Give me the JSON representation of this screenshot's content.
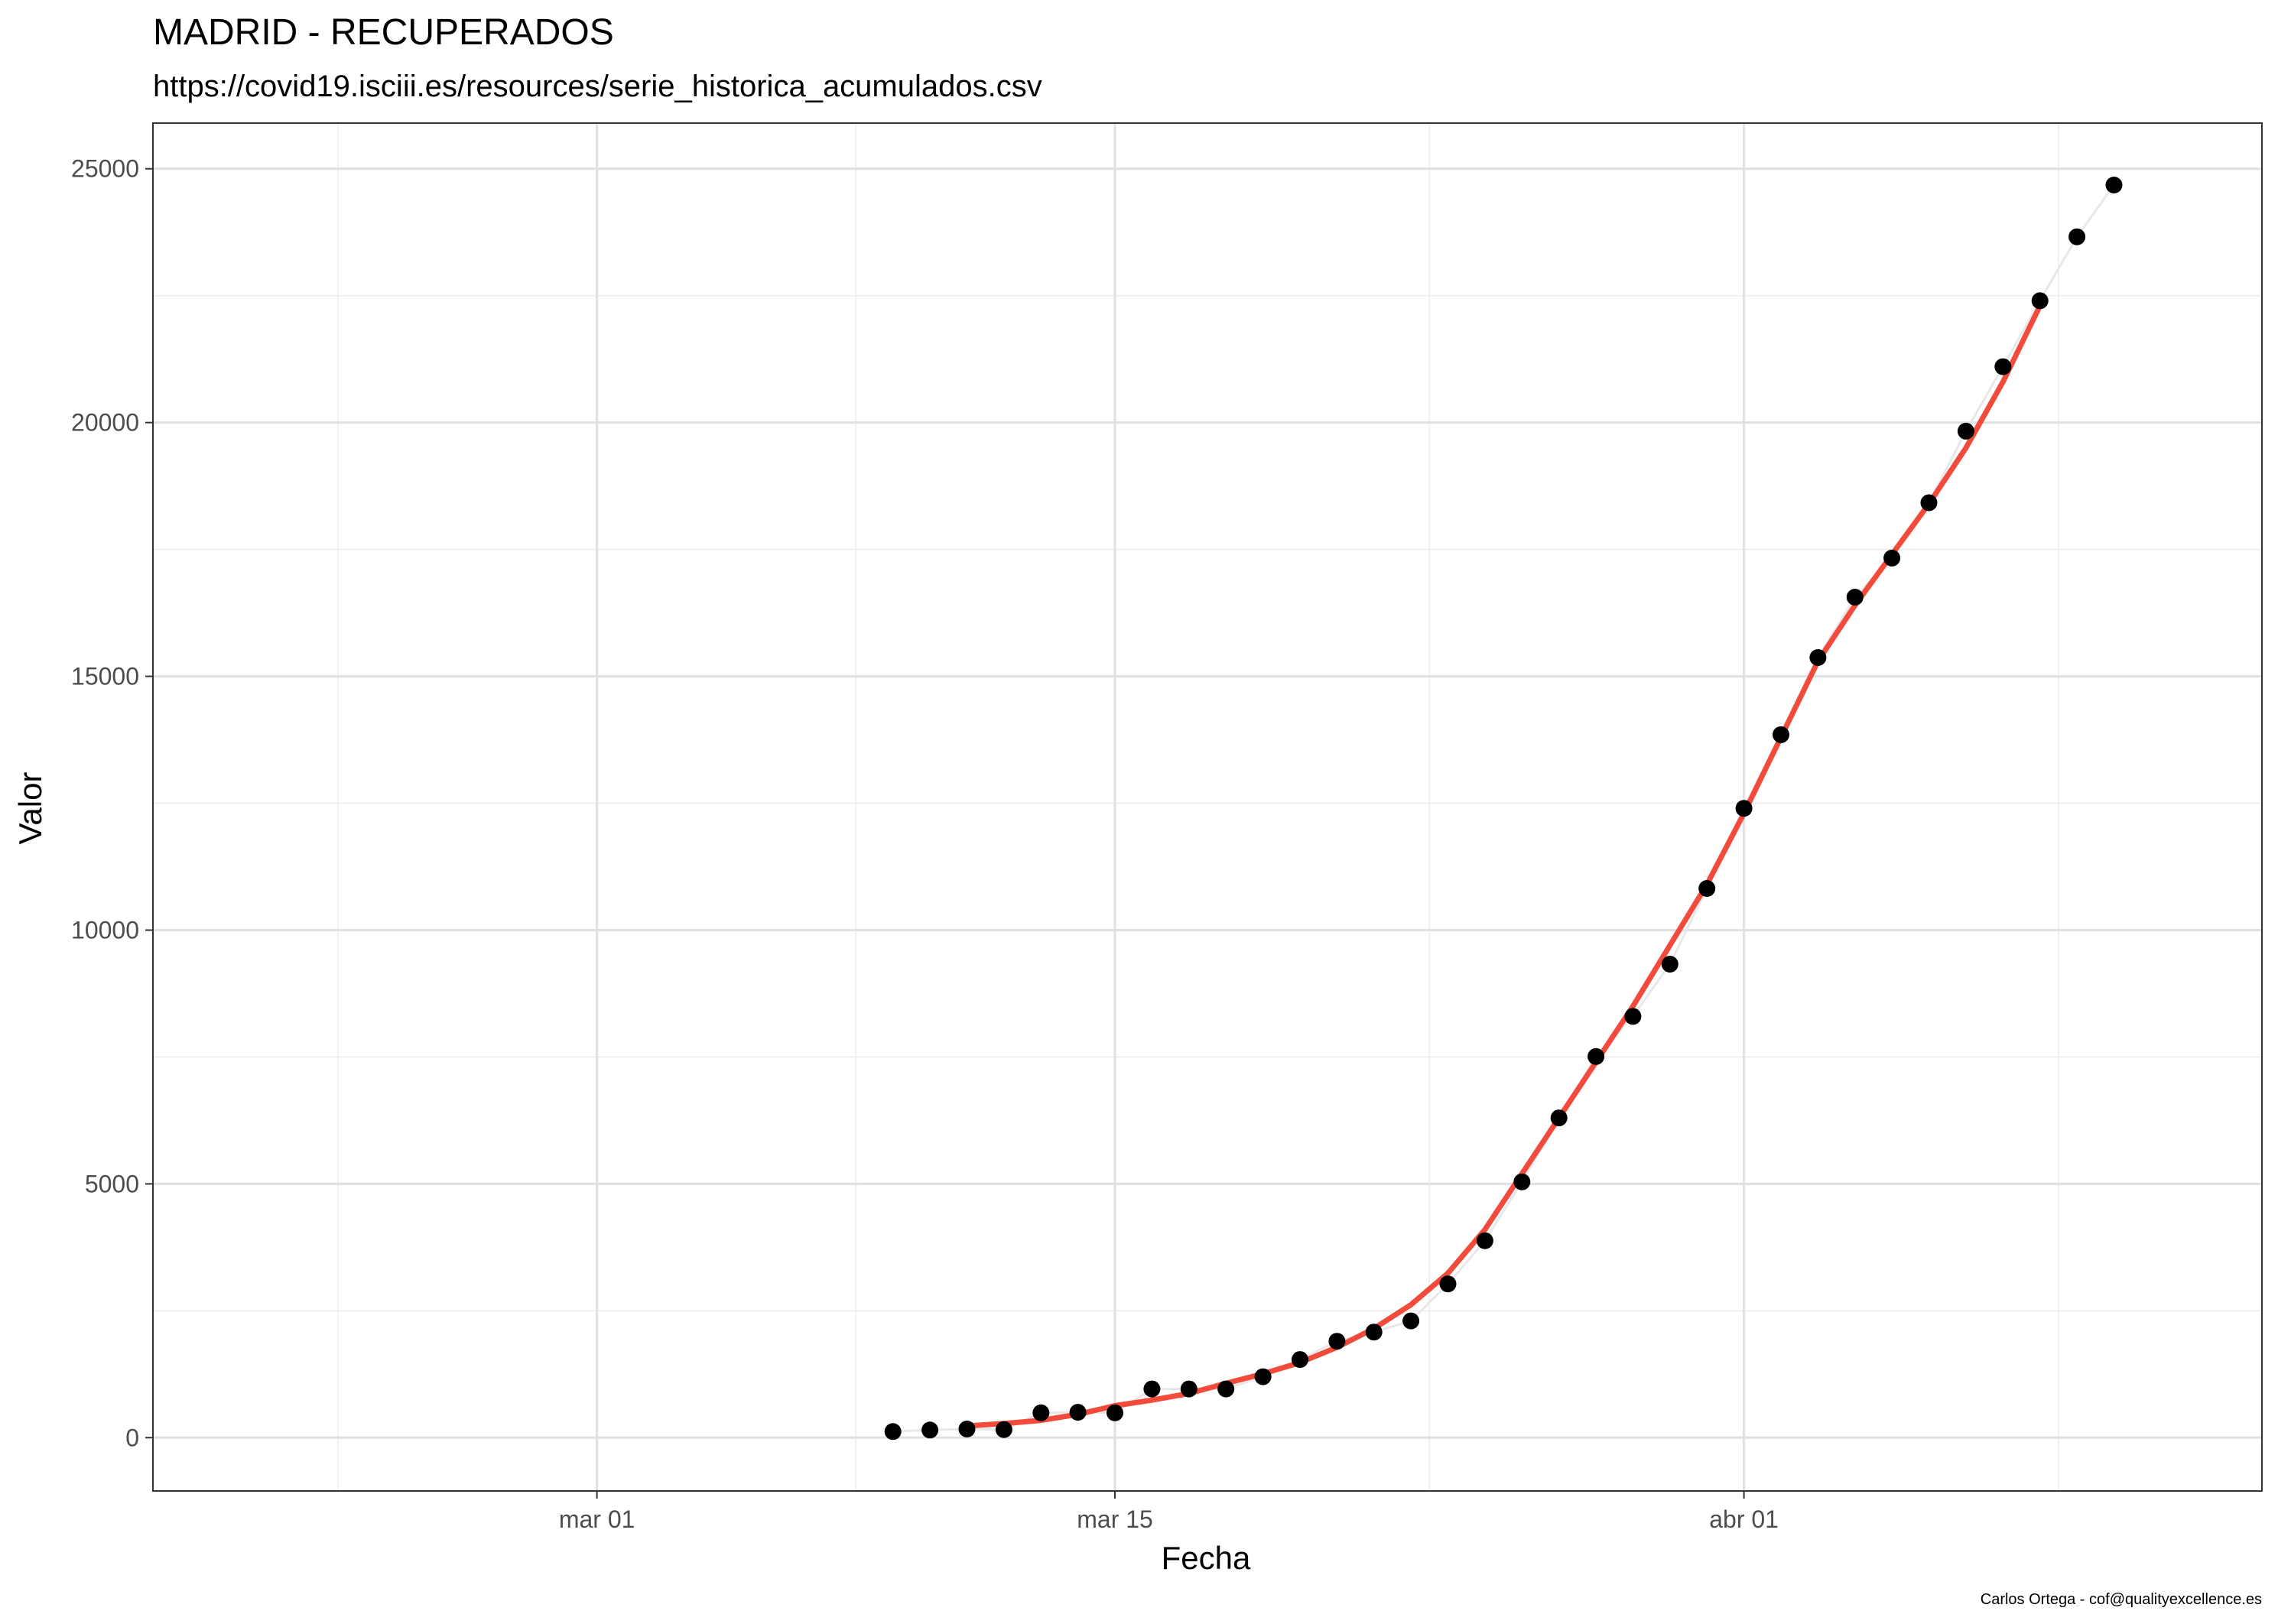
{
  "chart_data": {
    "type": "line",
    "title": "MADRID - RECUPERADOS",
    "subtitle": "https://covid19.isciii.es/resources/serie_historica_acumulados.csv",
    "xlabel": "Fecha",
    "ylabel": "Valor",
    "caption": "Carlos Ortega - cof@qualityexcellence.es",
    "x_ticks": [
      {
        "date": "2020-03-01",
        "label": "mar 01"
      },
      {
        "date": "2020-03-15",
        "label": "mar 15"
      },
      {
        "date": "2020-04-01",
        "label": "abr 01"
      }
    ],
    "y_ticks": [
      0,
      5000,
      10000,
      15000,
      20000,
      25000
    ],
    "xlim": [
      "2020-02-18",
      "2020-04-15"
    ],
    "ylim": [
      -1050,
      25900
    ],
    "grid": true,
    "series": [
      {
        "style": "points",
        "color": "#000000",
        "x": [
          "2020-03-09",
          "2020-03-10",
          "2020-03-11",
          "2020-03-12",
          "2020-03-13",
          "2020-03-14",
          "2020-03-15",
          "2020-03-16",
          "2020-03-17",
          "2020-03-18",
          "2020-03-19",
          "2020-03-20",
          "2020-03-21",
          "2020-03-22",
          "2020-03-23",
          "2020-03-24",
          "2020-03-25",
          "2020-03-26",
          "2020-03-27",
          "2020-03-28",
          "2020-03-29",
          "2020-03-30",
          "2020-03-31",
          "2020-04-01",
          "2020-04-02",
          "2020-04-03",
          "2020-04-04",
          "2020-04-05",
          "2020-04-06",
          "2020-04-07",
          "2020-04-08",
          "2020-04-09",
          "2020-04-10",
          "2020-04-11"
        ],
        "y": [
          120,
          150,
          170,
          160,
          490,
          500,
          490,
          960,
          960,
          960,
          1200,
          1540,
          1900,
          2080,
          2300,
          3030,
          3880,
          5040,
          6300,
          7510,
          8300,
          9330,
          10820,
          12400,
          13850,
          15370,
          16560,
          17330,
          18420,
          19830,
          21100,
          22400,
          23660,
          24680
        ]
      },
      {
        "style": "line",
        "color": "#e8e8e8",
        "x": [
          "2020-03-09",
          "2020-03-10",
          "2020-03-11",
          "2020-03-12",
          "2020-03-13",
          "2020-03-14",
          "2020-03-15",
          "2020-03-16",
          "2020-03-17",
          "2020-03-18",
          "2020-03-19",
          "2020-03-20",
          "2020-03-21",
          "2020-03-22",
          "2020-03-23",
          "2020-03-24",
          "2020-03-25",
          "2020-03-26",
          "2020-03-27",
          "2020-03-28",
          "2020-03-29",
          "2020-03-30",
          "2020-03-31",
          "2020-04-01",
          "2020-04-02",
          "2020-04-03",
          "2020-04-04",
          "2020-04-05",
          "2020-04-06",
          "2020-04-07",
          "2020-04-08",
          "2020-04-09",
          "2020-04-10",
          "2020-04-11"
        ],
        "y": [
          120,
          150,
          170,
          160,
          490,
          500,
          490,
          960,
          960,
          960,
          1200,
          1540,
          1900,
          2080,
          2300,
          3030,
          3880,
          5040,
          6300,
          7510,
          8300,
          9330,
          10820,
          12400,
          13850,
          15370,
          16560,
          17330,
          18420,
          19830,
          21100,
          22400,
          23660,
          24680
        ]
      },
      {
        "style": "line",
        "color": "#f24b3c",
        "x": [
          "2020-03-11",
          "2020-03-12",
          "2020-03-13",
          "2020-03-14",
          "2020-03-15",
          "2020-03-16",
          "2020-03-17",
          "2020-03-18",
          "2020-03-19",
          "2020-03-20",
          "2020-03-21",
          "2020-03-22",
          "2020-03-23",
          "2020-03-24",
          "2020-03-25",
          "2020-03-26",
          "2020-03-27",
          "2020-03-28",
          "2020-03-29",
          "2020-03-30",
          "2020-03-31",
          "2020-04-01",
          "2020-04-02",
          "2020-04-03",
          "2020-04-04",
          "2020-04-05",
          "2020-04-06",
          "2020-04-07",
          "2020-04-08",
          "2020-04-09"
        ],
        "y": [
          230,
          280,
          340,
          460,
          630,
          740,
          870,
          1070,
          1260,
          1480,
          1780,
          2150,
          2620,
          3240,
          4100,
          5200,
          6300,
          7400,
          8500,
          9700,
          10900,
          12300,
          13800,
          15300,
          16400,
          17400,
          18400,
          19500,
          20800,
          22300
        ]
      }
    ]
  }
}
